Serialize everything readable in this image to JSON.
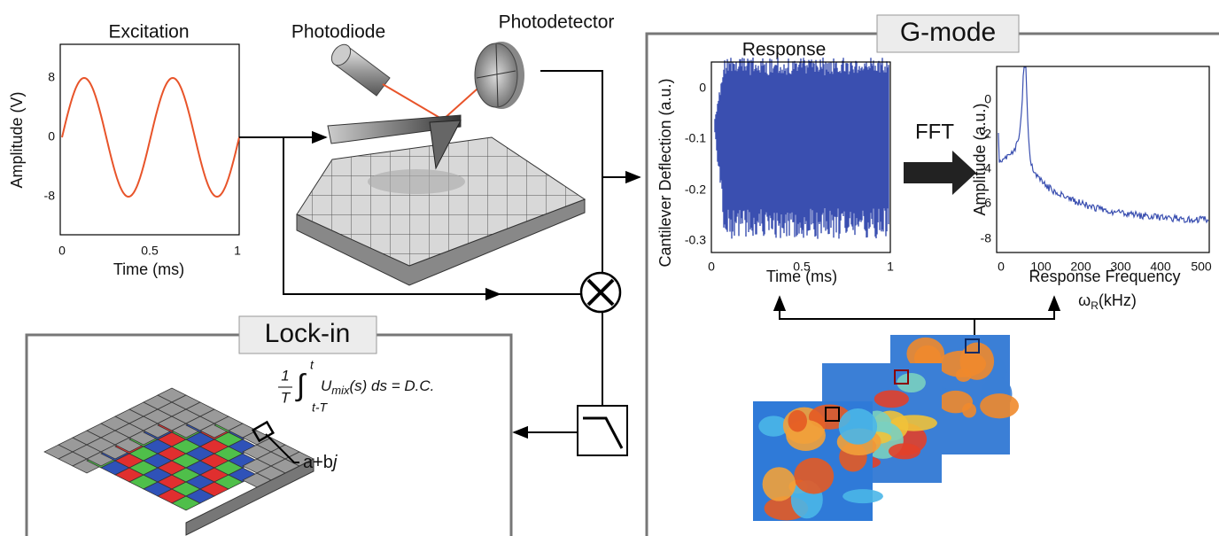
{
  "excitation": {
    "title": "Excitation",
    "y_label": "Amplitude (V)",
    "yticks": [
      8,
      0,
      -8
    ],
    "x_label": "Time (ms)",
    "xticks": [
      0,
      0.5,
      1
    ]
  },
  "setup": {
    "photodiode": "Photodiode",
    "photodetector": "Photodetector"
  },
  "gmode": {
    "title": "G-mode",
    "response": {
      "title": "Response",
      "y_label": "Cantilever Deflection (a.u.)",
      "yticks": [
        0,
        -0.1,
        -0.2,
        -0.3
      ],
      "x_label": "Time (ms)",
      "xticks": [
        0,
        0.5,
        1
      ]
    },
    "fft_label": "FFT",
    "spectrum": {
      "y_label": "Amplitude (a.u.)",
      "yticks": [
        0,
        -2,
        -4,
        -6,
        -8
      ],
      "x_label": "Response Frequency",
      "xticks": [
        0,
        100,
        200,
        300,
        400,
        500
      ],
      "unit": {
        "symbol": "ω",
        "subscript": "R",
        "text": "(kHz)"
      }
    }
  },
  "lockin": {
    "title": "Lock-in",
    "formula": {
      "numerator": "1",
      "denominator": "T",
      "upper": "t",
      "lower": "t-T",
      "integrand": "U",
      "subscript": "mix",
      "rest": "(s) ds = D.C."
    },
    "output": {
      "text": "a+b",
      "italic": "j"
    }
  }
}
